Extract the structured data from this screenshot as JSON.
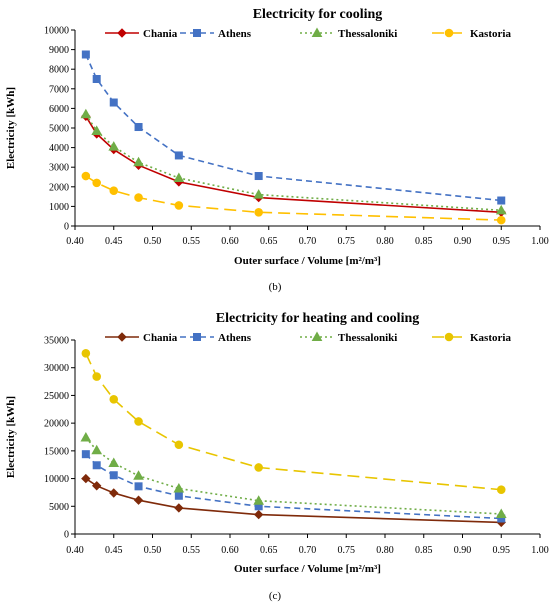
{
  "chart_data": [
    {
      "type": "line",
      "title": "Electricity for cooling",
      "xlabel": "Outer surface / Volume [m²/m³]",
      "ylabel": "Electricity [kWh]",
      "caption": "(b)",
      "xlim": [
        0.4,
        1.0
      ],
      "ylim": [
        0,
        10000
      ],
      "x_ticks": [
        "0.40",
        "0.45",
        "0.50",
        "0.55",
        "0.60",
        "0.65",
        "0.70",
        "0.75",
        "0.80",
        "0.85",
        "0.90",
        "0.95",
        "1.00"
      ],
      "y_ticks": [
        "0",
        "1000",
        "2000",
        "3000",
        "4000",
        "5000",
        "6000",
        "7000",
        "8000",
        "9000",
        "10000"
      ],
      "grid": false,
      "legend_position": "top",
      "x": [
        0.414,
        0.428,
        0.45,
        0.482,
        0.534,
        0.637,
        0.95
      ],
      "series": [
        {
          "name": "Chania",
          "color": "#c00000",
          "marker": "diamond",
          "dash": "solid",
          "values": [
            5600,
            4700,
            3900,
            3100,
            2250,
            1450,
            700
          ]
        },
        {
          "name": "Athens",
          "color": "#4472c4",
          "marker": "square",
          "dash": "dash",
          "values": [
            8750,
            7500,
            6300,
            5050,
            3600,
            2550,
            1300
          ]
        },
        {
          "name": "Thessaloniki",
          "color": "#70ad47",
          "marker": "triangle",
          "dash": "dot",
          "values": [
            5700,
            4850,
            4050,
            3250,
            2450,
            1600,
            800
          ]
        },
        {
          "name": "Kastoria",
          "color": "#ffc000",
          "marker": "circle",
          "dash": "longdash",
          "values": [
            2550,
            2200,
            1800,
            1450,
            1050,
            700,
            300
          ]
        }
      ]
    },
    {
      "type": "line",
      "title": "Electricity for heating and cooling",
      "xlabel": "Outer surface / Volume [m²/m³]",
      "ylabel": "Electricity [kWh]",
      "caption": "(c)",
      "xlim": [
        0.4,
        1.0
      ],
      "ylim": [
        0,
        35000
      ],
      "x_ticks": [
        "0.40",
        "0.45",
        "0.50",
        "0.55",
        "0.60",
        "0.65",
        "0.70",
        "0.75",
        "0.80",
        "0.85",
        "0.90",
        "0.95",
        "1.00"
      ],
      "y_ticks": [
        "0",
        "5000",
        "10000",
        "15000",
        "20000",
        "25000",
        "30000",
        "35000"
      ],
      "grid": false,
      "legend_position": "top",
      "x": [
        0.414,
        0.428,
        0.45,
        0.482,
        0.534,
        0.637,
        0.95
      ],
      "series": [
        {
          "name": "Chania",
          "color": "#7f2a0a",
          "marker": "diamond",
          "dash": "solid",
          "values": [
            10000,
            8700,
            7400,
            6100,
            4700,
            3500,
            2100
          ]
        },
        {
          "name": "Athens",
          "color": "#4472c4",
          "marker": "square",
          "dash": "dash",
          "values": [
            14400,
            12400,
            10600,
            8600,
            6900,
            5000,
            2800
          ]
        },
        {
          "name": "Thessaloniki",
          "color": "#70ad47",
          "marker": "triangle",
          "dash": "dot",
          "values": [
            17400,
            15100,
            12800,
            10500,
            8200,
            6000,
            3600
          ]
        },
        {
          "name": "Kastoria",
          "color": "#e8c500",
          "marker": "circle",
          "dash": "longdash",
          "values": [
            32600,
            28400,
            24300,
            20300,
            16100,
            12000,
            8000
          ]
        }
      ]
    }
  ]
}
